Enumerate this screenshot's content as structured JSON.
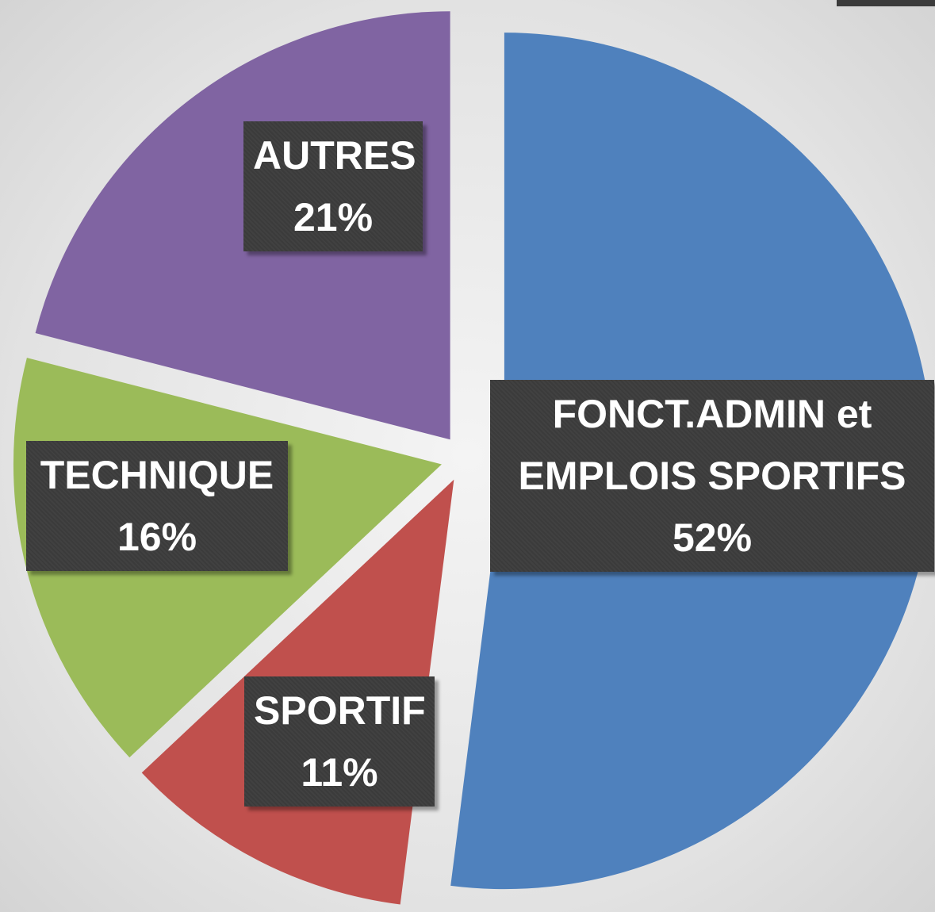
{
  "chart_data": {
    "type": "pie",
    "categories": [
      "FONCT.ADMIN et EMPLOIS SPORTIFS",
      "SPORTIF",
      "TECHNIQUE",
      "AUTRES"
    ],
    "values": [
      52,
      11,
      16,
      21
    ],
    "value_labels": [
      "52%",
      "11%",
      "16%",
      "21%"
    ],
    "colors": [
      "#4f81bd",
      "#c0504d",
      "#9bbb59",
      "#8064a2"
    ]
  }
}
